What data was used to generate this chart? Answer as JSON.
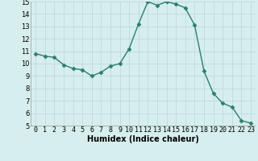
{
  "x": [
    0,
    1,
    2,
    3,
    4,
    5,
    6,
    7,
    8,
    9,
    10,
    11,
    12,
    13,
    14,
    15,
    16,
    17,
    18,
    19,
    20,
    21,
    22,
    23
  ],
  "y": [
    10.8,
    10.6,
    10.5,
    9.9,
    9.6,
    9.5,
    9.0,
    9.3,
    9.8,
    10.0,
    11.2,
    13.2,
    15.0,
    14.7,
    15.0,
    14.8,
    14.5,
    13.1,
    9.4,
    7.6,
    6.8,
    6.5,
    5.4,
    5.2
  ],
  "line_color": "#2e7d6e",
  "marker": "D",
  "marker_size": 2.5,
  "bg_color": "#d6eeee",
  "grid_color": "#b8d8d8",
  "xlabel": "Humidex (Indice chaleur)",
  "ylim": [
    5,
    15
  ],
  "xlim_min": -0.5,
  "xlim_max": 23.5,
  "yticks": [
    5,
    6,
    7,
    8,
    9,
    10,
    11,
    12,
    13,
    14,
    15
  ],
  "xticks": [
    0,
    1,
    2,
    3,
    4,
    5,
    6,
    7,
    8,
    9,
    10,
    11,
    12,
    13,
    14,
    15,
    16,
    17,
    18,
    19,
    20,
    21,
    22,
    23
  ],
  "xlabel_fontsize": 7,
  "tick_fontsize": 6,
  "linewidth": 1.0
}
